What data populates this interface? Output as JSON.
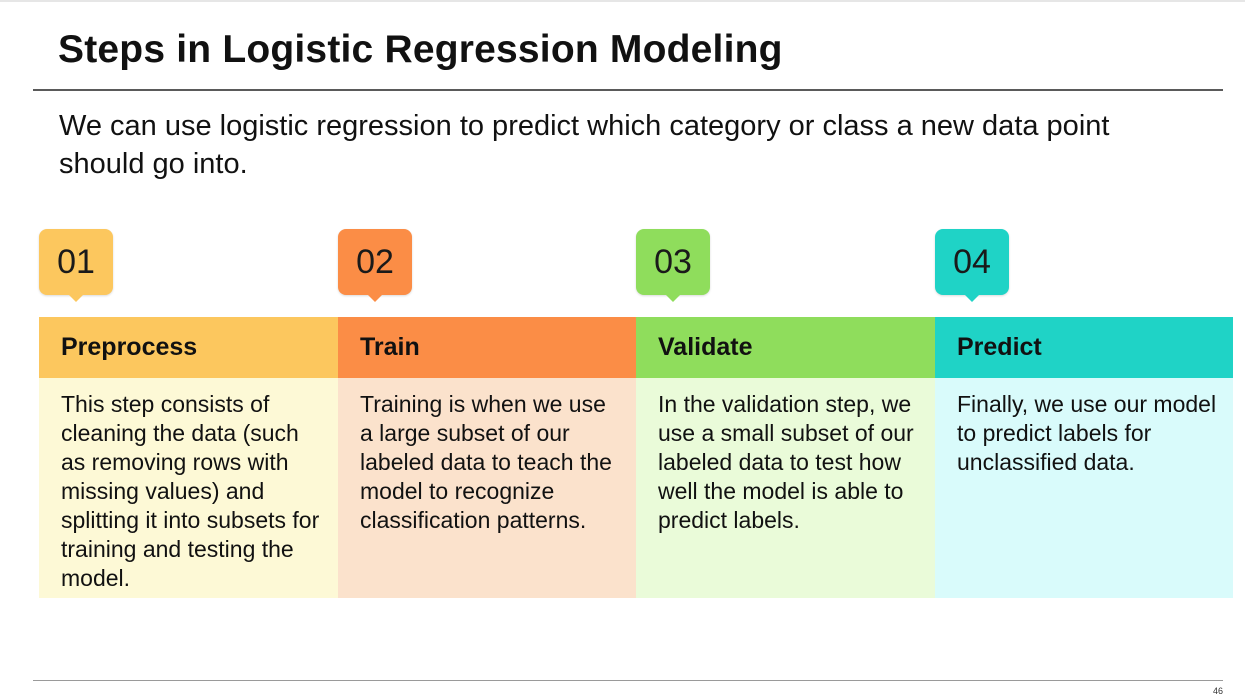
{
  "slide": {
    "title": "Steps in Logistic Regression Modeling",
    "intro": "We can use logistic regression to predict which category or class a new data point should go into.",
    "page_number": "46"
  },
  "steps": [
    {
      "number": "01",
      "heading": "Preprocess",
      "body": "This step consists of cleaning the data (such as removing rows with missing values) and splitting it into subsets for training and testing the model.",
      "accent_color": "#fcc75e",
      "body_color": "#fdf9d6"
    },
    {
      "number": "02",
      "heading": "Train",
      "body": "Training is when we use a large subset of our labeled data to teach the model to recognize classification patterns.",
      "accent_color": "#fb8d46",
      "body_color": "#fbe2cc"
    },
    {
      "number": "03",
      "heading": "Validate",
      "body": "In the validation step, we use a small subset of our labeled data to test how well the model is able to predict labels.",
      "accent_color": "#8fdd5c",
      "body_color": "#eafbd9"
    },
    {
      "number": "04",
      "heading": "Predict",
      "body": "Finally, we use our model to predict labels for unclassified data.",
      "accent_color": "#1fd3c6",
      "body_color": "#d9fbfb"
    }
  ]
}
